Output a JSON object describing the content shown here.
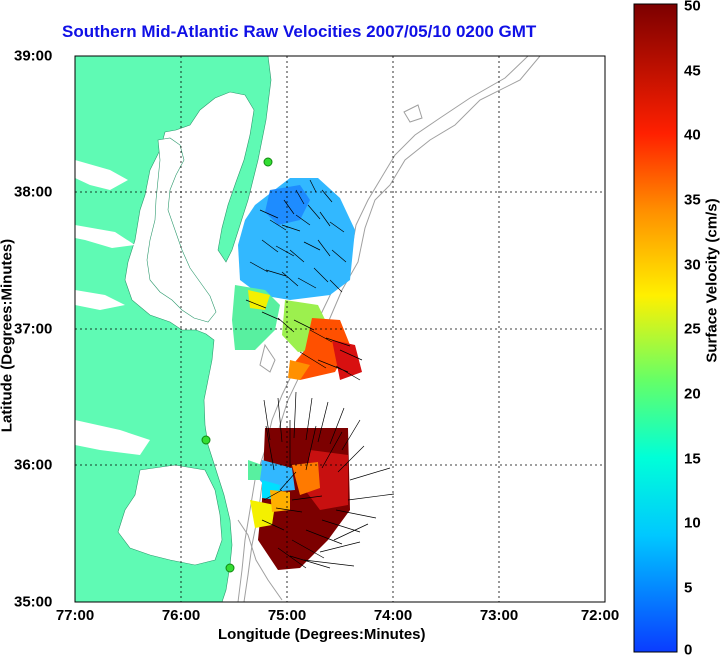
{
  "title": "Southern Mid-Atlantic Raw Velocities 2007/05/10 0200 GMT",
  "xlabel": "Longitude (Degrees:Minutes)",
  "ylabel": "Latitude (Degrees:Minutes)",
  "colorbar_label": "Surface Velocity (cm/s)",
  "x_ticks": [
    "77:00",
    "76:00",
    "75:00",
    "74:00",
    "73:00",
    "72:00"
  ],
  "y_ticks": [
    "39:00",
    "38:00",
    "37:00",
    "36:00",
    "35:00"
  ],
  "colorbar_ticks": [
    "50",
    "45",
    "40",
    "35",
    "30",
    "25",
    "20",
    "15",
    "10",
    "5",
    "0"
  ],
  "colors": {
    "land": "#5ffab4",
    "title": "#1010e6",
    "bathymetry": "#a0a0a0",
    "station": "#33dd33"
  },
  "chart_data": {
    "type": "heatmap",
    "title": "Southern Mid-Atlantic Raw Velocities 2007/05/10 0200 GMT",
    "xlabel": "Longitude (Degrees:Minutes)",
    "ylabel": "Latitude (Degrees:Minutes)",
    "x_range": [
      -77,
      -72
    ],
    "y_range": [
      35,
      39
    ],
    "color_range": [
      0,
      50
    ],
    "colorbar_label": "Surface Velocity (cm/s)",
    "grid": true
  }
}
